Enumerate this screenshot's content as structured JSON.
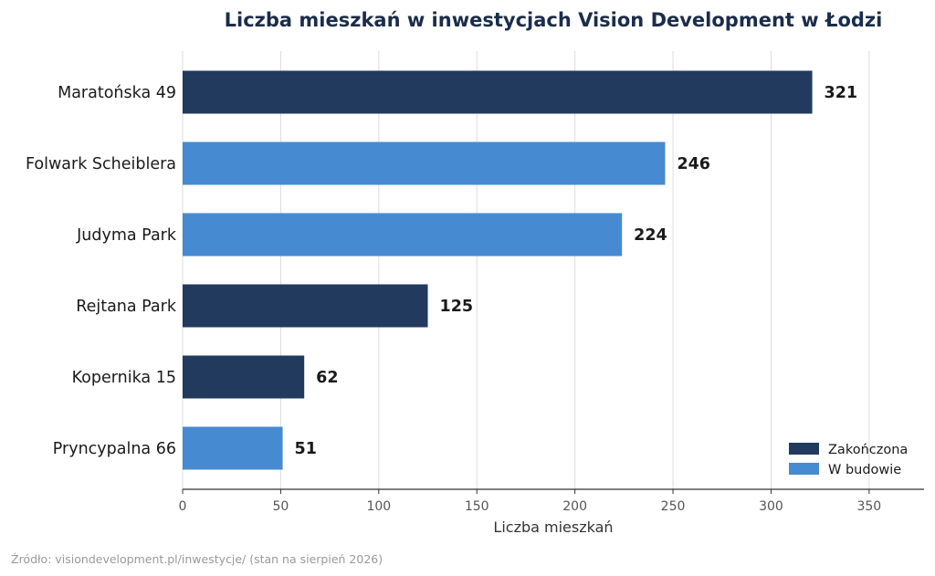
{
  "chart_data": {
    "type": "bar",
    "orientation": "horizontal",
    "title": "Liczba mieszkań w inwestycjach Vision Development w Łodzi",
    "xlabel": "Liczba mieszkań",
    "ylabel": "",
    "xlim": [
      0,
      378
    ],
    "xticks": [
      0,
      50,
      100,
      150,
      200,
      250,
      300,
      350
    ],
    "grid": "vertical",
    "legend_position": "bottom-right",
    "categories": [
      "Maratońska 49",
      "Folwark Scheiblera",
      "Judyma Park",
      "Rejtana Park",
      "Kopernika 15",
      "Pryncypalna 66"
    ],
    "values": [
      321,
      246,
      224,
      125,
      62,
      51
    ],
    "status": [
      "Zakończona",
      "W budowie",
      "W budowie",
      "Zakończona",
      "Zakończona",
      "W budowie"
    ],
    "legend": [
      {
        "name": "Zakończona",
        "color": "#213a5e"
      },
      {
        "name": "W budowie",
        "color": "#468ad2"
      }
    ]
  },
  "source_note": "Źródło: visiondevelopment.pl/inwestycje/ (stan na sierpień 2026)"
}
